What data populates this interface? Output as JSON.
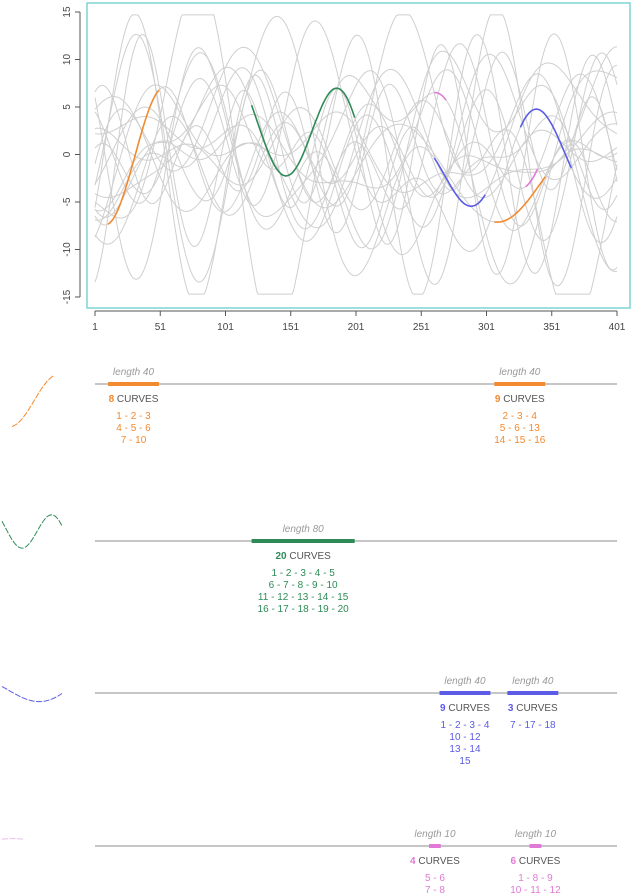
{
  "chart_data": {
    "type": "line",
    "main": {
      "xticks": [
        "1",
        "51",
        "101",
        "151",
        "201",
        "251",
        "301",
        "351",
        "401"
      ],
      "yticks": [
        "15",
        "10",
        "5",
        "0",
        "-5",
        "-10",
        "-15"
      ],
      "xlim": [
        1,
        401
      ],
      "ylim": [
        -15,
        15
      ],
      "background_curves": 20,
      "highlight": [
        {
          "color": "#f28a2e",
          "segments": [
            [
              11,
              50
            ],
            [
              307,
              346
            ]
          ]
        },
        {
          "color": "#2e8b57",
          "segments": [
            [
              121,
              200
            ]
          ]
        },
        {
          "color": "#5b5be6",
          "segments": [
            [
              261,
              300
            ],
            [
              327,
              366
            ]
          ]
        },
        {
          "color": "#e07ad6",
          "segments": [
            [
              261,
              270
            ],
            [
              331,
              340
            ]
          ]
        }
      ]
    },
    "motif_rows": [
      {
        "color": "#f28a2e",
        "motifs": [
          {
            "start": 11,
            "end": 50,
            "length_label": "length 40",
            "count": "8",
            "curves_word": "CURVES",
            "ids": [
              "1 - 2 - 3",
              "4 - 5 - 6",
              "7 - 10"
            ]
          },
          {
            "start": 307,
            "end": 346,
            "length_label": "length 40",
            "count": "9",
            "curves_word": "CURVES",
            "ids": [
              "2 - 3 - 4",
              "5 - 6 - 13",
              "14 - 15 - 16"
            ]
          }
        ]
      },
      {
        "color": "#2e8b57",
        "motifs": [
          {
            "start": 121,
            "end": 200,
            "length_label": "length 80",
            "count": "20",
            "curves_word": "CURVES",
            "ids": [
              "1 - 2 - 3 - 4 - 5",
              "6 - 7 - 8 - 9 - 10",
              "11 - 12 - 13 - 14 - 15",
              "16 - 17 - 18 - 19 - 20"
            ]
          }
        ]
      },
      {
        "color": "#5b5be6",
        "motifs": [
          {
            "start": 265,
            "end": 304,
            "length_label": "length 40",
            "count": "9",
            "curves_word": "CURVES",
            "ids": [
              "1 - 2 - 3 - 4",
              "10 - 12",
              "13 - 14",
              "15"
            ]
          },
          {
            "start": 317,
            "end": 356,
            "length_label": "length 40",
            "count": "3",
            "curves_word": "CURVES",
            "ids": [
              "7 - 17 - 18"
            ]
          }
        ]
      },
      {
        "color": "#e07ad6",
        "motifs": [
          {
            "start": 257,
            "end": 266,
            "length_label": "length 10",
            "count": "4",
            "curves_word": "CURVES",
            "ids": [
              "5 - 6",
              "7 - 8"
            ]
          },
          {
            "start": 334,
            "end": 343,
            "length_label": "length 10",
            "count": "6",
            "curves_word": "CURVES",
            "ids": [
              "1 - 8 - 9",
              "10 - 11 - 12"
            ]
          }
        ]
      }
    ]
  }
}
